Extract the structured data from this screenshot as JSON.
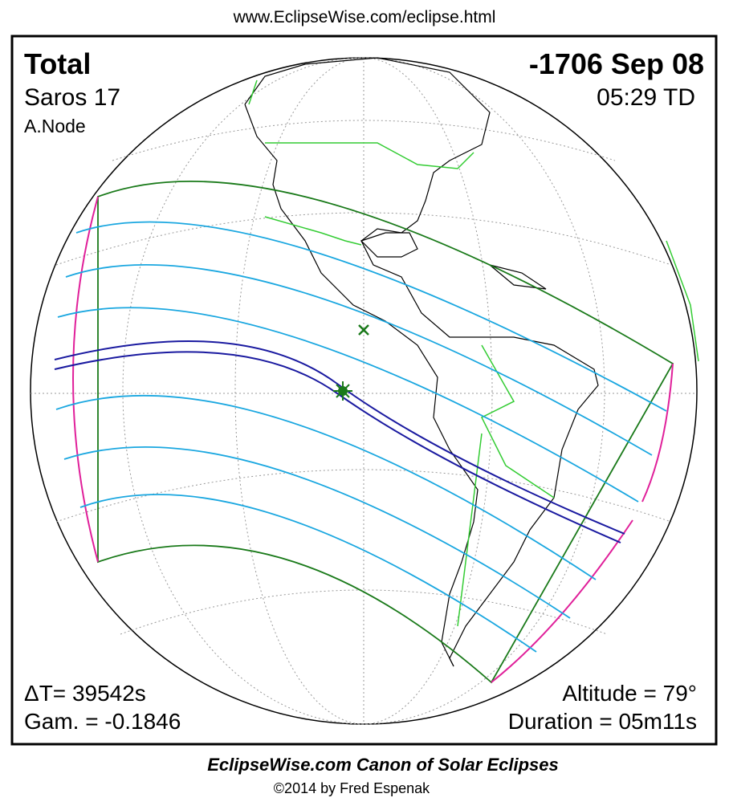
{
  "header": {
    "url": "www.EclipseWise.com/eclipse.html"
  },
  "panel": {
    "eclipse_type": "Total",
    "saros": "Saros  17",
    "node": "A.Node",
    "date": "-1706 Sep 08",
    "time": "05:29 TD",
    "delta_t": "ΔT=  39542s",
    "gamma": "Gam. = -0.1846",
    "altitude": "Altitude = 79°",
    "duration": "Duration = 05m11s"
  },
  "footer": {
    "title": "EclipseWise.com Canon of Solar Eclipses",
    "copyright": "©2014 by Fred Espenak"
  }
}
